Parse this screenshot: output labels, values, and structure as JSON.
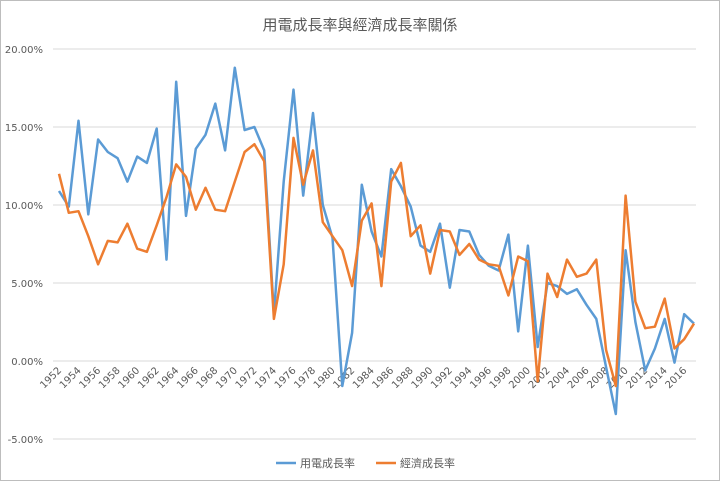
{
  "chart_data": {
    "type": "line",
    "title": "用電成長率與經濟成長率關係",
    "xlabel": "",
    "ylabel": "",
    "ylim": [
      -0.05,
      0.2
    ],
    "yticks": [
      "-5.00%",
      "0.00%",
      "5.00%",
      "10.00%",
      "15.00%",
      "20.00%"
    ],
    "ytick_values": [
      -0.05,
      0,
      0.05,
      0.1,
      0.15,
      0.2
    ],
    "grid": true,
    "legend_position": "bottom",
    "x": [
      1952,
      1953,
      1954,
      1955,
      1956,
      1957,
      1958,
      1959,
      1960,
      1961,
      1962,
      1963,
      1964,
      1965,
      1966,
      1967,
      1968,
      1969,
      1970,
      1971,
      1972,
      1973,
      1974,
      1975,
      1976,
      1977,
      1978,
      1979,
      1980,
      1981,
      1982,
      1983,
      1984,
      1985,
      1986,
      1987,
      1988,
      1989,
      1990,
      1991,
      1992,
      1993,
      1994,
      1995,
      1996,
      1997,
      1998,
      1999,
      2000,
      2001,
      2002,
      2003,
      2004,
      2005,
      2006,
      2007,
      2008,
      2009,
      2010,
      2011,
      2012,
      2013,
      2014,
      2015,
      2016,
      2017
    ],
    "xtick_labels": [
      "1952",
      "1954",
      "1956",
      "1958",
      "1960",
      "1962",
      "1964",
      "1966",
      "1968",
      "1970",
      "1972",
      "1974",
      "1976",
      "1978",
      "1980",
      "1982",
      "1984",
      "1986",
      "1988",
      "1990",
      "1992",
      "1994",
      "1996",
      "1998",
      "2000",
      "2002",
      "2004",
      "2006",
      "2008",
      "2010",
      "2012",
      "2014",
      "2016"
    ],
    "series": [
      {
        "name": "用電成長率",
        "color": "#5b9bd5",
        "values": [
          0.109,
          0.099,
          0.154,
          0.094,
          0.142,
          0.134,
          0.13,
          0.115,
          0.131,
          0.127,
          0.149,
          0.065,
          0.179,
          0.093,
          0.136,
          0.145,
          0.165,
          0.135,
          0.188,
          0.148,
          0.15,
          0.135,
          0.03,
          0.115,
          0.174,
          0.106,
          0.159,
          0.1,
          0.079,
          -0.016,
          0.018,
          0.113,
          0.083,
          0.067,
          0.123,
          0.112,
          0.099,
          0.074,
          0.07,
          0.088,
          0.047,
          0.084,
          0.083,
          0.068,
          0.061,
          0.058,
          0.081,
          0.019,
          0.074,
          0.009,
          0.05,
          0.048,
          0.043,
          0.046,
          0.036,
          0.027,
          -0.004,
          -0.034,
          0.071,
          0.025,
          -0.006,
          0.008,
          0.027,
          -0.001,
          0.03,
          0.024
        ]
      },
      {
        "name": "經濟成長率",
        "color": "#ed7d31",
        "values": [
          0.12,
          0.095,
          0.096,
          0.08,
          0.062,
          0.077,
          0.076,
          0.088,
          0.072,
          0.07,
          0.087,
          0.105,
          0.126,
          0.118,
          0.097,
          0.111,
          0.097,
          0.096,
          0.115,
          0.134,
          0.139,
          0.128,
          0.027,
          0.062,
          0.143,
          0.113,
          0.135,
          0.089,
          0.08,
          0.071,
          0.048,
          0.09,
          0.101,
          0.048,
          0.115,
          0.127,
          0.08,
          0.087,
          0.056,
          0.084,
          0.083,
          0.068,
          0.075,
          0.065,
          0.062,
          0.061,
          0.042,
          0.067,
          0.064,
          -0.013,
          0.056,
          0.041,
          0.065,
          0.054,
          0.056,
          0.065,
          0.007,
          -0.016,
          0.106,
          0.038,
          0.021,
          0.022,
          0.04,
          0.008,
          0.014,
          0.024
        ]
      }
    ]
  }
}
